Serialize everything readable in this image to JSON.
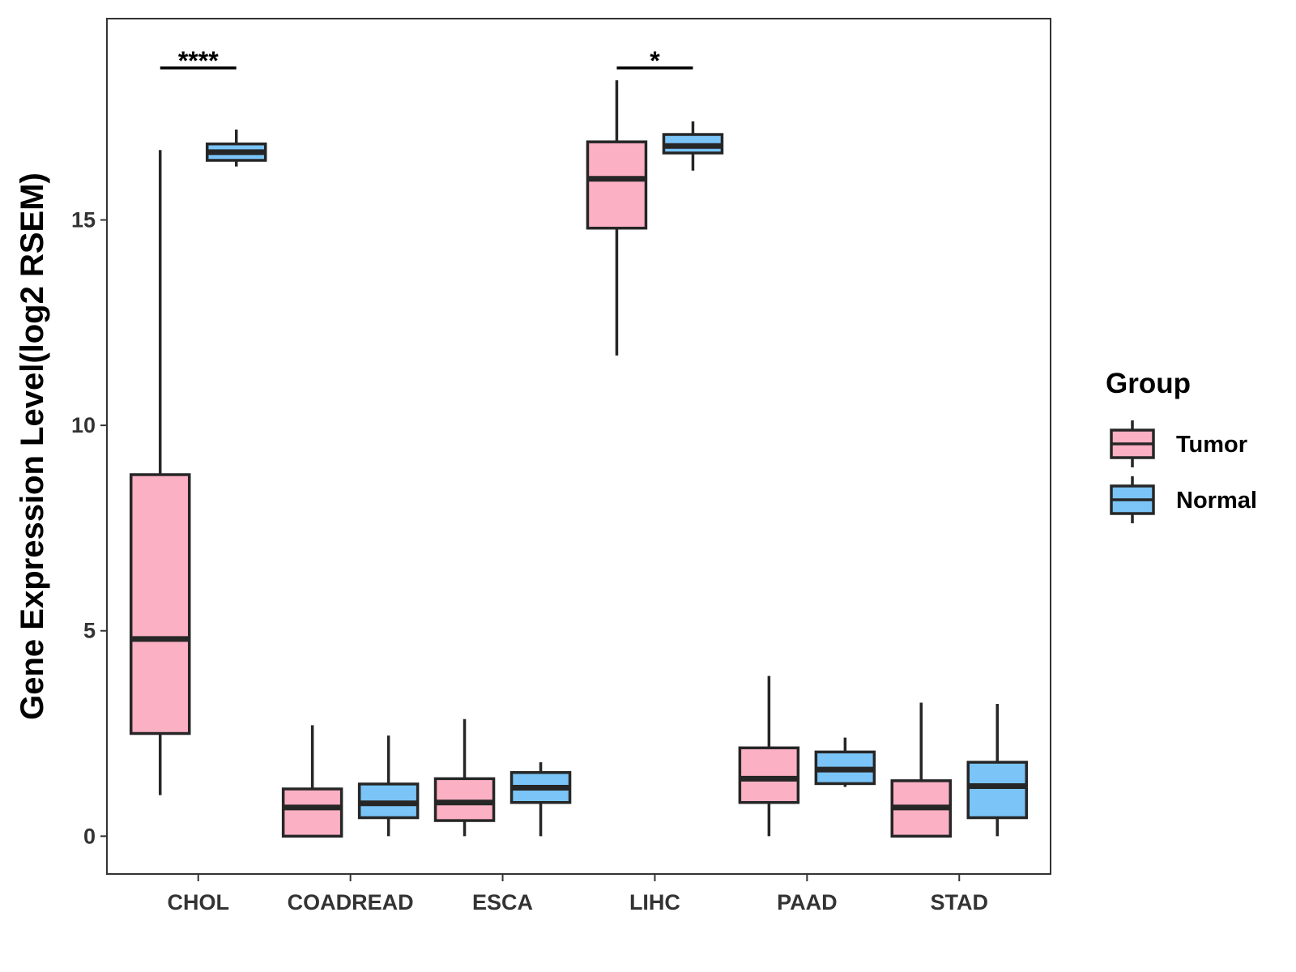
{
  "chart_data": {
    "type": "boxplot",
    "title": "",
    "xlabel": "",
    "ylabel": "Gene Expression Level(log2 RSEM)",
    "ylim": [
      -0.92,
      19.9
    ],
    "yticks": [
      0,
      5,
      10,
      15
    ],
    "grid": false,
    "categories": [
      "CHOL",
      "COADREAD",
      "ESCA",
      "LIHC",
      "PAAD",
      "STAD"
    ],
    "legend": {
      "title": "Group",
      "placement": "right"
    },
    "series": [
      {
        "name": "Tumor",
        "color": "#FBB0C4",
        "boxes": [
          {
            "category": "CHOL",
            "whisker_low": 1.0,
            "q1": 2.5,
            "median": 4.8,
            "q3": 8.8,
            "whisker_high": 16.7
          },
          {
            "category": "COADREAD",
            "whisker_low": 0.0,
            "q1": 0.0,
            "median": 0.7,
            "q3": 1.15,
            "whisker_high": 2.7
          },
          {
            "category": "ESCA",
            "whisker_low": 0.0,
            "q1": 0.38,
            "median": 0.82,
            "q3": 1.4,
            "whisker_high": 2.85
          },
          {
            "category": "LIHC",
            "whisker_low": 11.7,
            "q1": 14.8,
            "median": 16.0,
            "q3": 16.9,
            "whisker_high": 18.4
          },
          {
            "category": "PAAD",
            "whisker_low": 0.0,
            "q1": 0.82,
            "median": 1.4,
            "q3": 2.15,
            "whisker_high": 3.9
          },
          {
            "category": "STAD",
            "whisker_low": 0.0,
            "q1": 0.0,
            "median": 0.7,
            "q3": 1.35,
            "whisker_high": 3.25
          }
        ]
      },
      {
        "name": "Normal",
        "color": "#7AC4F8",
        "boxes": [
          {
            "category": "CHOL",
            "whisker_low": 16.3,
            "q1": 16.45,
            "median": 16.65,
            "q3": 16.85,
            "whisker_high": 17.2
          },
          {
            "category": "COADREAD",
            "whisker_low": 0.0,
            "q1": 0.45,
            "median": 0.8,
            "q3": 1.27,
            "whisker_high": 2.45
          },
          {
            "category": "ESCA",
            "whisker_low": 0.0,
            "q1": 0.82,
            "median": 1.18,
            "q3": 1.55,
            "whisker_high": 1.8
          },
          {
            "category": "LIHC",
            "whisker_low": 16.2,
            "q1": 16.63,
            "median": 16.8,
            "q3": 17.08,
            "whisker_high": 17.4
          },
          {
            "category": "PAAD",
            "whisker_low": 1.2,
            "q1": 1.28,
            "median": 1.62,
            "q3": 2.05,
            "whisker_high": 2.4
          },
          {
            "category": "STAD",
            "whisker_low": 0.0,
            "q1": 0.45,
            "median": 1.22,
            "q3": 1.8,
            "whisker_high": 3.22
          }
        ]
      }
    ],
    "annotations": [
      {
        "category": "CHOL",
        "label": "****",
        "y": 18.7
      },
      {
        "category": "LIHC",
        "label": "*",
        "y": 18.7
      }
    ]
  }
}
